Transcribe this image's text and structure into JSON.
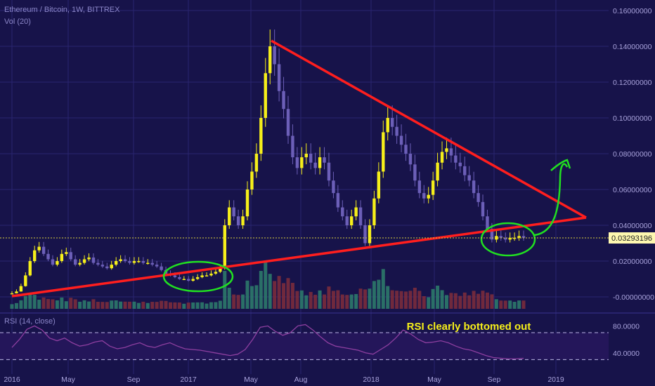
{
  "header": {
    "title": "Ethereum / Bitcoin, 1W, BITTREX",
    "volume_label": "Vol (20)"
  },
  "rsi_label": "RSI (14, close)",
  "annotation": "RSI clearly bottomed out",
  "price_label": "0.03293196",
  "colors": {
    "background": "#17134a",
    "grid": "#2a2470",
    "up": "#f6ef1a",
    "down": "#6c5fb8",
    "vol_up": "#2c7a6a",
    "vol_down": "#7a2c3c",
    "trendline": "#ff1e1e",
    "circle": "#21e021",
    "rsi": "#8e3fa0",
    "label_bg": "#fff8b0"
  },
  "chart_data": {
    "type": "candlestick",
    "title": "Ethereum / Bitcoin, 1W, BITTREX",
    "x_ticks": [
      "2016",
      "May",
      "Sep",
      "2017",
      "May",
      "Aug",
      "2018",
      "May",
      "Sep",
      "2019"
    ],
    "y_ticks": [
      "0.16000000",
      "0.14000000",
      "0.12000000",
      "0.10000000",
      "0.08000000",
      "0.06000000",
      "0.04000000",
      "0.02000000",
      "-0.00000000"
    ],
    "ylim": [
      -0.002,
      0.164
    ],
    "last_price": 0.03293196,
    "weekly_closes": [
      0.002,
      0.003,
      0.006,
      0.012,
      0.02,
      0.026,
      0.028,
      0.024,
      0.021,
      0.018,
      0.02,
      0.024,
      0.025,
      0.021,
      0.018,
      0.019,
      0.021,
      0.022,
      0.019,
      0.018,
      0.017,
      0.016,
      0.018,
      0.02,
      0.021,
      0.02,
      0.019,
      0.02,
      0.02,
      0.019,
      0.019,
      0.018,
      0.017,
      0.015,
      0.013,
      0.012,
      0.011,
      0.01,
      0.01,
      0.009,
      0.01,
      0.011,
      0.012,
      0.012,
      0.013,
      0.014,
      0.016,
      0.04,
      0.05,
      0.045,
      0.04,
      0.045,
      0.06,
      0.07,
      0.08,
      0.1,
      0.125,
      0.14,
      0.13,
      0.115,
      0.105,
      0.09,
      0.078,
      0.072,
      0.078,
      0.08,
      0.075,
      0.072,
      0.078,
      0.075,
      0.065,
      0.058,
      0.05,
      0.045,
      0.04,
      0.045,
      0.05,
      0.04,
      0.03,
      0.04,
      0.055,
      0.07,
      0.092,
      0.1,
      0.095,
      0.09,
      0.085,
      0.08,
      0.074,
      0.065,
      0.058,
      0.055,
      0.057,
      0.065,
      0.075,
      0.081,
      0.083,
      0.079,
      0.075,
      0.073,
      0.068,
      0.065,
      0.058,
      0.053,
      0.045,
      0.038,
      0.032,
      0.034,
      0.033,
      0.032,
      0.033,
      0.033,
      0.034,
      0.033
    ],
    "rsi": {
      "label": "RSI (14, close)",
      "y_ticks": [
        "80.0000",
        "40.0000"
      ],
      "ylim": [
        20,
        95
      ],
      "bands": [
        70,
        30
      ]
    },
    "annotations": [
      "RSI clearly bottomed out"
    ]
  }
}
